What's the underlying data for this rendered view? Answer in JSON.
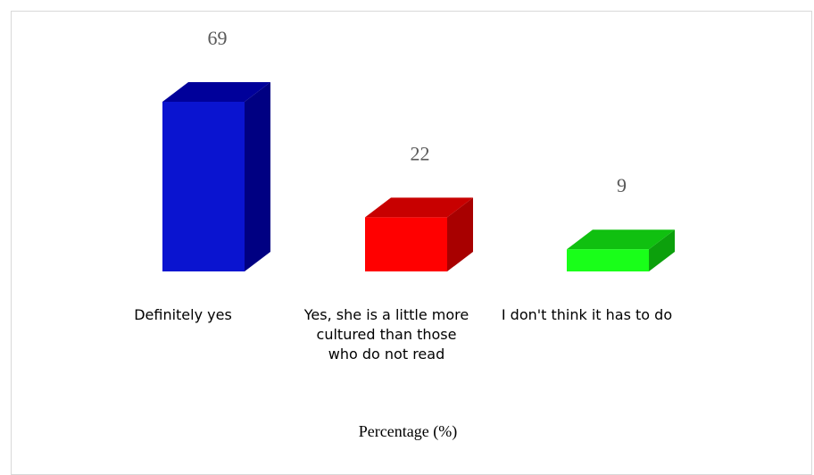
{
  "chart_data": {
    "type": "bar",
    "categories": [
      "Definitely yes",
      "Yes, she is a little more cultured than those who do not read",
      "I don't think it has to do"
    ],
    "values": [
      69,
      22,
      9
    ],
    "value_labels": [
      "69",
      "22",
      "9"
    ],
    "xlabel": "Percentage (%)",
    "ylabel": "",
    "ylim": [
      0,
      70
    ],
    "grid": false,
    "legend": "none",
    "style": "3d-column",
    "colors": [
      {
        "front": "#0a14d0",
        "top": "#00009a",
        "side": "#000082"
      },
      {
        "front": "#ff0000",
        "top": "#c80000",
        "side": "#a80000"
      },
      {
        "front": "#19ff19",
        "top": "#10c010",
        "side": "#0ca00c"
      }
    ]
  }
}
